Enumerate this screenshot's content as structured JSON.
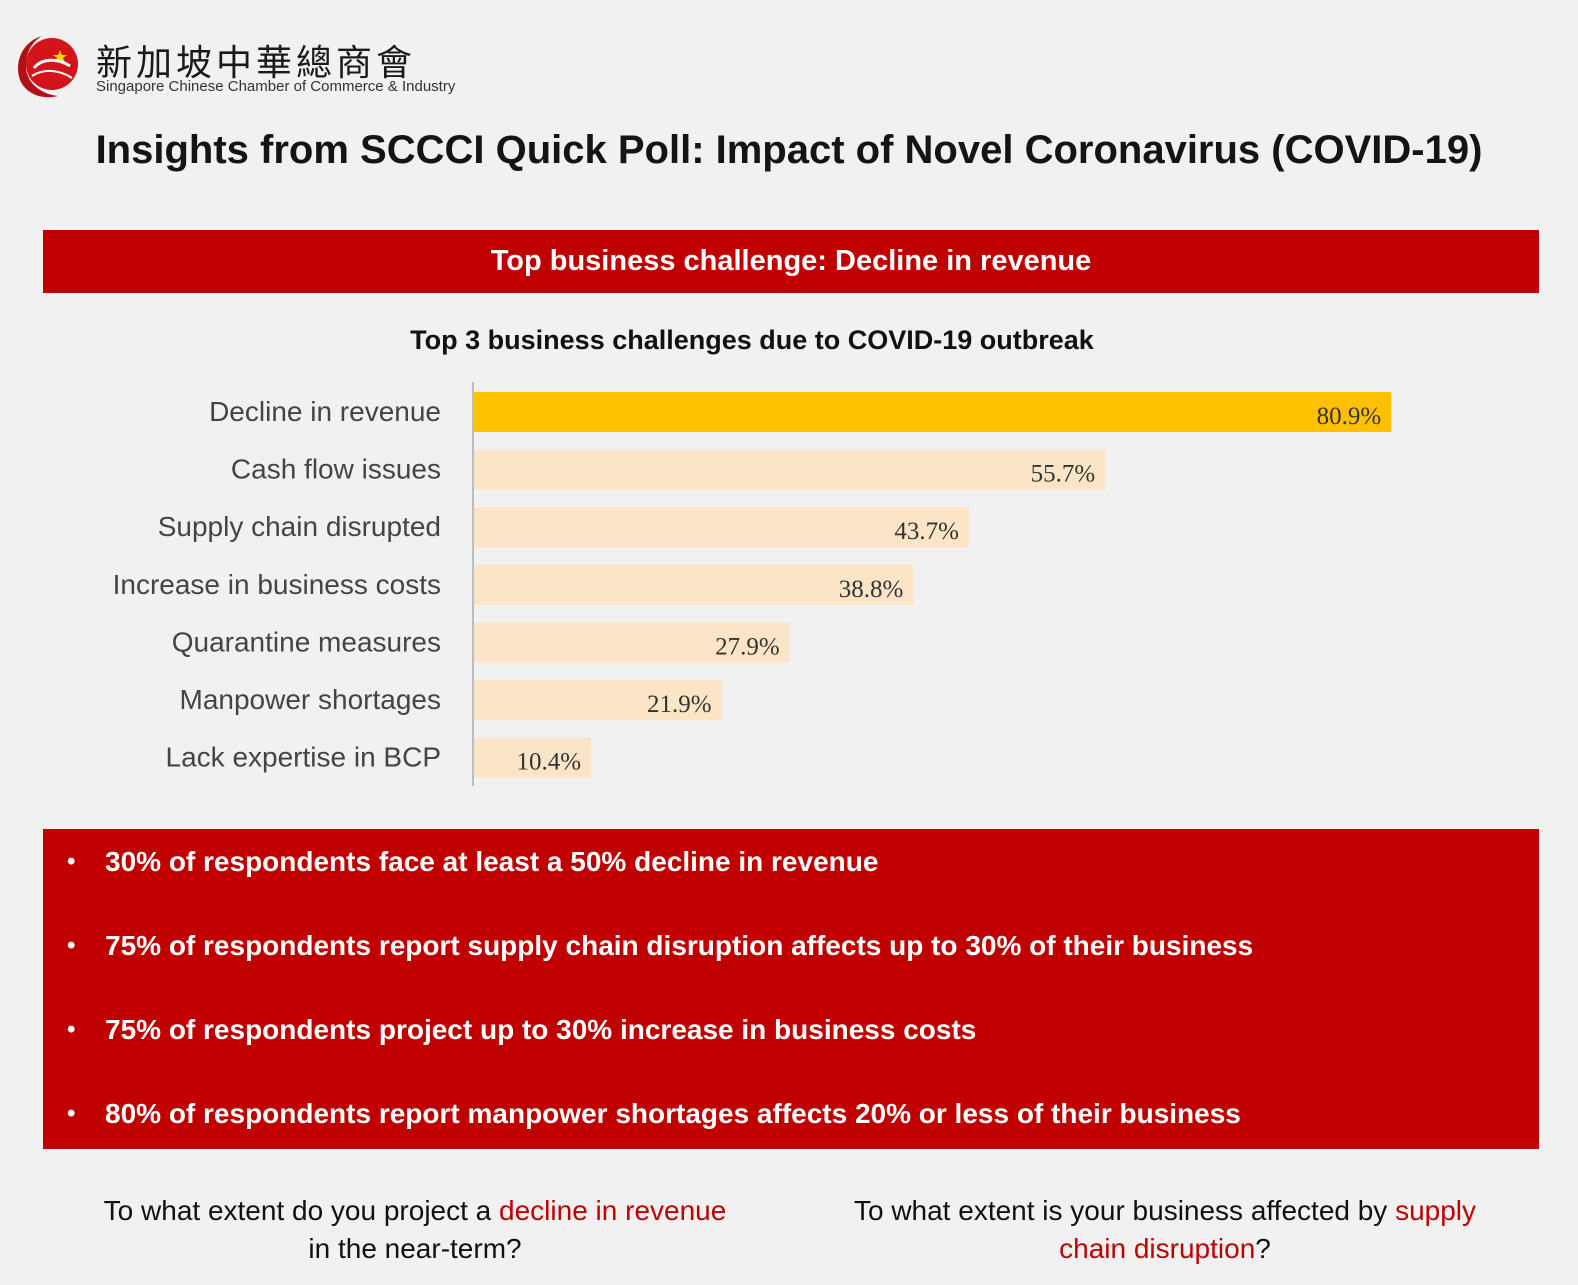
{
  "org": {
    "name_cn": "新加坡中華總商會",
    "name_en": "Singapore Chinese Chamber of Commerce & Industry"
  },
  "title": "Insights from SCCCI Quick Poll: Impact of Novel Coronavirus (COVID-19)",
  "banner": "Top business challenge: Decline in revenue",
  "chart_data": {
    "type": "bar",
    "orientation": "horizontal",
    "title": "Top 3 business challenges due to COVID-19 outbreak",
    "categories": [
      "Decline in revenue",
      "Cash flow issues",
      "Supply chain disrupted",
      "Increase in business costs",
      "Quarantine measures",
      "Manpower shortages",
      "Lack expertise in BCP"
    ],
    "values": [
      80.9,
      55.7,
      43.7,
      38.8,
      27.9,
      21.9,
      10.4
    ],
    "value_labels": [
      "80.9%",
      "55.7%",
      "43.7%",
      "38.8%",
      "27.9%",
      "21.9%",
      "10.4%"
    ],
    "xlim": [
      0,
      100
    ],
    "grid": false,
    "colors": {
      "highlight": "#ffc000",
      "normal": "#fbe5c6"
    }
  },
  "findings": [
    "30% of respondents face at least a 50% decline in revenue",
    "75% of respondents report supply chain disruption affects up to 30% of their business",
    "75% of respondents project up to 30% increase in business costs",
    "80% of respondents report manpower shortages affects 20% or less of their business"
  ],
  "questions": {
    "left": {
      "pre": "To what extent do you project a ",
      "highlight": "decline in revenue",
      "post": " in the near-term?"
    },
    "right": {
      "pre": "To what extent is your business affected by ",
      "highlight": "supply chain disruption",
      "post": "?"
    }
  },
  "colors": {
    "brand_red": "#c00000"
  }
}
